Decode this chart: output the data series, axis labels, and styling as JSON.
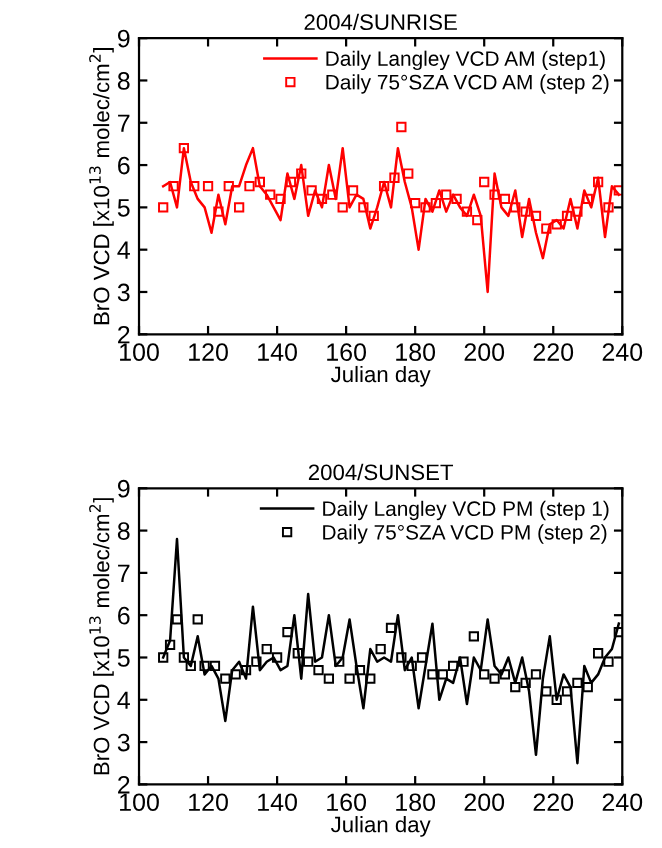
{
  "chart_data": [
    {
      "type": "line",
      "title": "2004/SUNRISE",
      "xlabel": "Julian day",
      "ylabel": "BrO VCD [x10$^{13}$ molec/cm$^{2}$]",
      "xlim": [
        100,
        240
      ],
      "xticks": [
        100,
        120,
        140,
        160,
        180,
        200,
        220,
        240
      ],
      "ylim": [
        2,
        9
      ],
      "yticks": [
        2,
        3,
        4,
        5,
        6,
        7,
        8,
        9
      ],
      "grid": false,
      "legend": "top right",
      "series": [
        {
          "name": "Daily Langley VCD AM (step1)",
          "color": "#ff0000",
          "marker": "none",
          "line_style": "solid",
          "x": [
            107,
            109,
            111,
            113,
            115,
            117,
            119,
            121,
            123,
            125,
            127,
            129,
            131,
            133,
            135,
            137,
            139,
            141,
            143,
            145,
            147,
            149,
            151,
            153,
            155,
            157,
            159,
            161,
            163,
            165,
            167,
            169,
            171,
            173,
            175,
            177,
            179,
            181,
            183,
            185,
            187,
            189,
            191,
            193,
            195,
            197,
            199,
            201,
            203,
            205,
            207,
            209,
            211,
            213,
            215,
            217,
            219,
            221,
            223,
            225,
            227,
            229,
            231,
            233,
            235,
            237,
            239
          ],
          "values": [
            5.5,
            5.6,
            5.0,
            6.4,
            5.6,
            5.2,
            5.0,
            4.4,
            5.3,
            4.6,
            5.5,
            5.5,
            6.0,
            6.4,
            5.5,
            5.3,
            5.0,
            4.7,
            5.8,
            5.2,
            6.0,
            4.8,
            5.4,
            5.0,
            6.0,
            5.2,
            6.4,
            5.0,
            5.3,
            5.2,
            4.5,
            5.0,
            5.6,
            5.0,
            6.4,
            5.6,
            5.0,
            4.0,
            5.2,
            4.9,
            5.4,
            4.9,
            5.3,
            5.0,
            4.8,
            5.3,
            4.8,
            3.0,
            5.8,
            5.0,
            4.8,
            5.4,
            4.3,
            5.2,
            4.4,
            3.8,
            4.6,
            4.7,
            4.5,
            5.2,
            4.5,
            5.4,
            5.0,
            5.7,
            4.3,
            5.5,
            5.3
          ]
        },
        {
          "name": "Daily 75°SZA VCD AM (step 2)",
          "type": "scatter",
          "color": "#ff0000",
          "marker": "square",
          "x": [
            107,
            110,
            113,
            116,
            120,
            123,
            126,
            129,
            132,
            135,
            138,
            141,
            144,
            147,
            150,
            153,
            156,
            159,
            162,
            165,
            168,
            171,
            174,
            176,
            178,
            180,
            183,
            186,
            189,
            192,
            195,
            198,
            200,
            203,
            206,
            209,
            212,
            215,
            218,
            221,
            224,
            227,
            230,
            233,
            236,
            239
          ],
          "values": [
            5.0,
            5.5,
            6.4,
            5.5,
            5.5,
            4.9,
            5.5,
            5.0,
            5.5,
            5.6,
            5.3,
            5.2,
            5.6,
            5.8,
            5.4,
            5.2,
            5.3,
            5.0,
            5.4,
            5.0,
            4.8,
            5.5,
            5.7,
            6.9,
            5.8,
            5.1,
            5.0,
            5.1,
            5.3,
            5.2,
            4.9,
            4.7,
            5.6,
            5.3,
            5.2,
            5.0,
            4.9,
            4.8,
            4.5,
            4.6,
            4.8,
            4.9,
            5.2,
            5.6,
            5.0,
            5.4
          ]
        }
      ]
    },
    {
      "type": "line",
      "title": "2004/SUNSET",
      "xlabel": "Julian day",
      "ylabel": "BrO VCD [x10$^{13}$ molec/cm$^{2}$]",
      "xlim": [
        100,
        240
      ],
      "xticks": [
        100,
        120,
        140,
        160,
        180,
        200,
        220,
        240
      ],
      "ylim": [
        2,
        9
      ],
      "yticks": [
        2,
        3,
        4,
        5,
        6,
        7,
        8,
        9
      ],
      "grid": false,
      "legend": "top right",
      "series": [
        {
          "name": "Daily Langley VCD PM (step 1)",
          "color": "#000000",
          "marker": "none",
          "line_style": "solid",
          "x": [
            107,
            109,
            111,
            113,
            115,
            117,
            119,
            121,
            123,
            125,
            127,
            129,
            131,
            133,
            135,
            137,
            139,
            141,
            143,
            145,
            147,
            149,
            151,
            153,
            155,
            157,
            159,
            161,
            163,
            165,
            167,
            169,
            171,
            173,
            175,
            177,
            179,
            181,
            183,
            185,
            187,
            189,
            191,
            193,
            195,
            197,
            199,
            201,
            203,
            205,
            207,
            209,
            211,
            213,
            215,
            217,
            219,
            221,
            223,
            225,
            227,
            229,
            231,
            233,
            235,
            237,
            239
          ],
          "values": [
            5.0,
            5.4,
            7.8,
            5.0,
            4.8,
            5.5,
            4.6,
            4.8,
            4.5,
            3.5,
            4.7,
            4.9,
            4.5,
            6.2,
            4.7,
            4.9,
            5.0,
            4.7,
            4.8,
            6.0,
            4.5,
            6.5,
            4.9,
            5.0,
            6.0,
            4.8,
            5.0,
            5.9,
            4.8,
            3.8,
            5.2,
            4.9,
            5.0,
            4.9,
            6.0,
            4.7,
            5.0,
            3.8,
            4.8,
            5.8,
            4.0,
            4.5,
            4.4,
            5.0,
            3.9,
            5.0,
            4.7,
            5.9,
            4.8,
            4.6,
            5.0,
            4.4,
            5.0,
            4.2,
            2.7,
            4.5,
            5.5,
            4.0,
            4.6,
            4.3,
            2.5,
            4.8,
            4.4,
            4.6,
            5.0,
            5.2,
            5.8
          ]
        },
        {
          "name": "Daily 75°SZA VCD PM (step 2)",
          "type": "scatter",
          "color": "#000000",
          "marker": "square",
          "x": [
            107,
            109,
            111,
            113,
            115,
            117,
            119,
            122,
            125,
            128,
            131,
            134,
            137,
            140,
            143,
            146,
            149,
            152,
            155,
            158,
            161,
            164,
            167,
            170,
            173,
            176,
            179,
            182,
            185,
            188,
            191,
            194,
            197,
            200,
            203,
            206,
            209,
            212,
            215,
            218,
            221,
            224,
            227,
            230,
            233,
            236,
            239
          ],
          "values": [
            5.0,
            5.3,
            5.9,
            5.0,
            4.8,
            5.9,
            4.8,
            4.8,
            4.5,
            4.6,
            4.7,
            4.9,
            5.2,
            5.0,
            5.6,
            5.1,
            4.9,
            4.7,
            4.5,
            4.9,
            4.5,
            4.7,
            4.5,
            5.2,
            5.7,
            5.0,
            4.8,
            5.0,
            4.6,
            4.6,
            4.8,
            4.9,
            5.5,
            4.6,
            4.5,
            4.6,
            4.3,
            4.4,
            4.6,
            4.2,
            4.0,
            4.2,
            4.4,
            4.3,
            5.1,
            4.9,
            5.6
          ]
        }
      ]
    }
  ]
}
